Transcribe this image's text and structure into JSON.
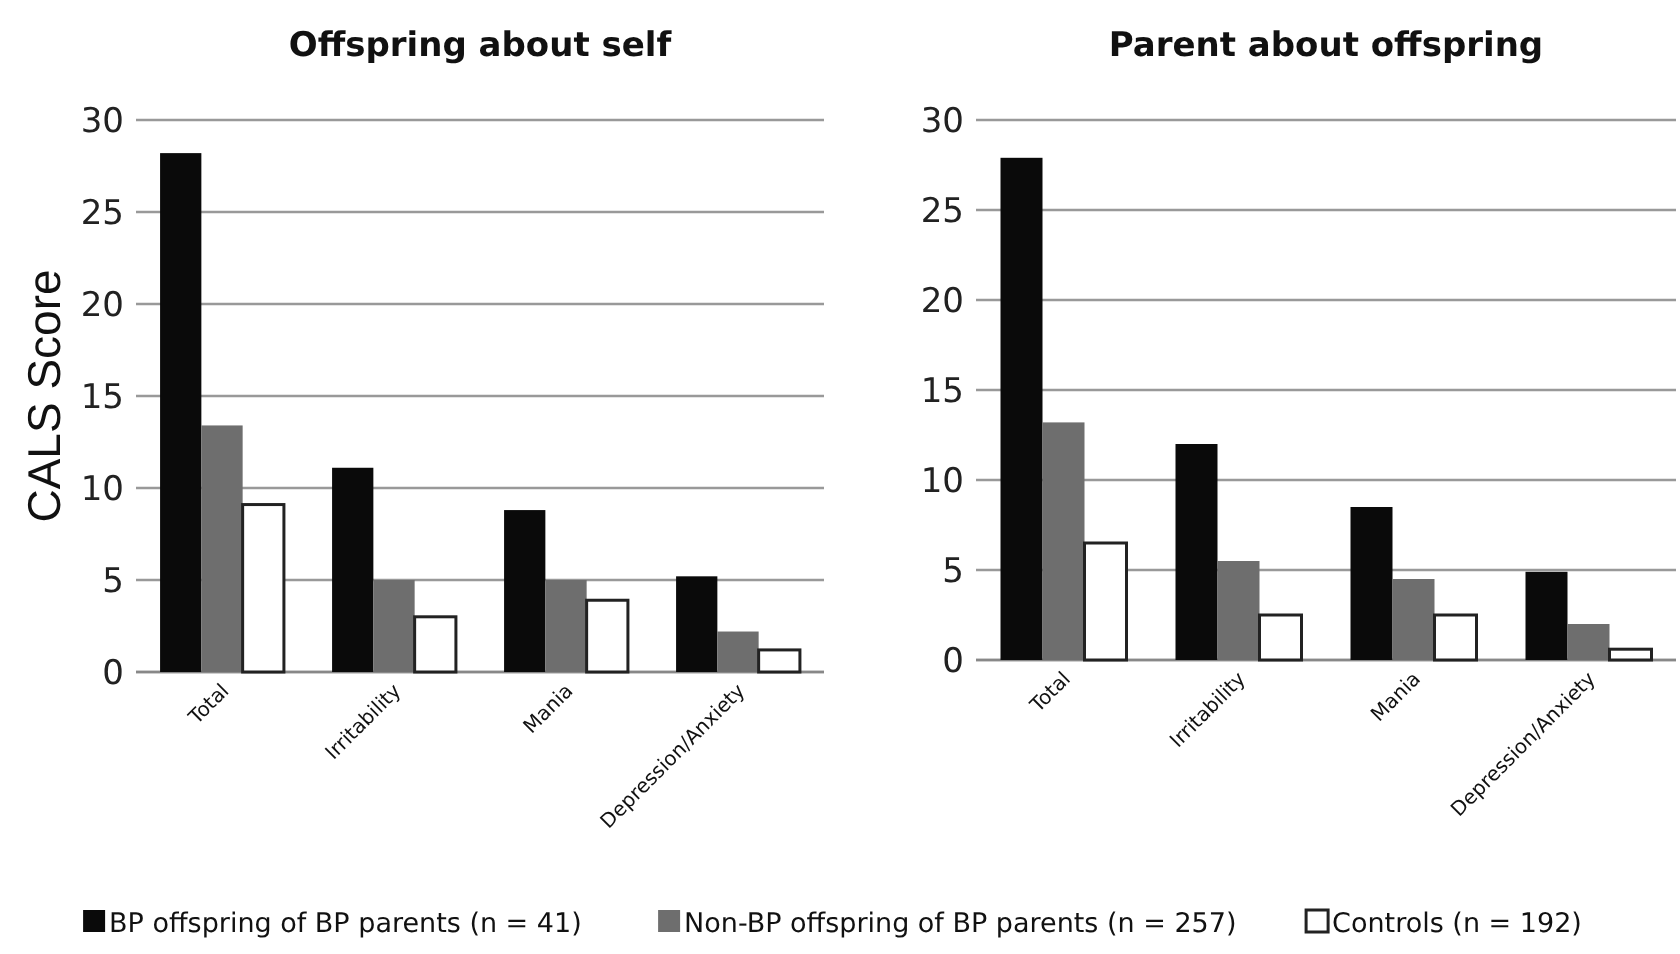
{
  "chart_data": [
    {
      "type": "bar",
      "title": "Offspring about self",
      "ylabel": "CALS Score",
      "categories": [
        "Total",
        "Irritability",
        "Mania",
        "Depression/Anxiety"
      ],
      "series": [
        {
          "name": "BP offspring of BP parents (n = 41)",
          "color": "#0a0a0a",
          "values": [
            28.2,
            11.1,
            8.8,
            5.2
          ]
        },
        {
          "name": "Non-BP offspring of BP parents (n = 257)",
          "color": "#6e6e6e",
          "values": [
            13.4,
            5.0,
            5.0,
            2.2
          ]
        },
        {
          "name": "Controls (n = 192)",
          "color": "#ffffff",
          "values": [
            9.1,
            3.0,
            3.9,
            1.2
          ]
        }
      ],
      "ylim": [
        0,
        30
      ],
      "yticks": [
        0,
        5,
        10,
        15,
        20,
        25,
        30
      ],
      "grid": "y",
      "legend": "bottom"
    },
    {
      "type": "bar",
      "title": "Parent about offspring",
      "categories": [
        "Total",
        "Irritability",
        "Mania",
        "Depression/Anxiety"
      ],
      "series": [
        {
          "color": "#0a0a0a",
          "values": [
            27.9,
            12.0,
            8.5,
            4.9
          ]
        },
        {
          "color": "#6e6e6e",
          "values": [
            13.2,
            5.5,
            4.5,
            2.0
          ]
        },
        {
          "color": "#ffffff",
          "values": [
            6.5,
            2.5,
            2.5,
            0.6
          ]
        }
      ],
      "ylim": [
        0,
        30
      ],
      "yticks": [
        0,
        5,
        10,
        15,
        20,
        25,
        30
      ],
      "grid": "y"
    }
  ]
}
